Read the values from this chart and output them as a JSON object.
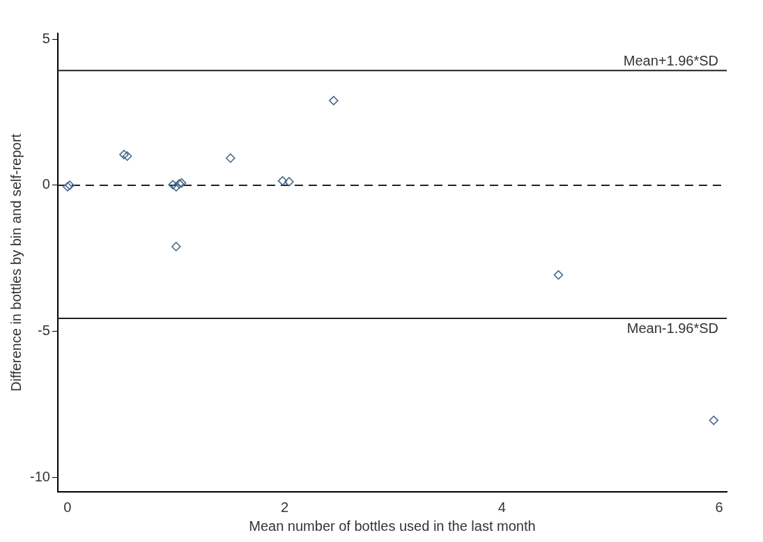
{
  "chart_data": {
    "type": "scatter",
    "xlabel": "Mean number of bottles used in the last month",
    "ylabel": "Difference in bottles by bin and self-report",
    "x": [
      0.0,
      0.02,
      0.52,
      0.55,
      0.97,
      1.0,
      1.03,
      1.05,
      1.0,
      1.5,
      1.98,
      2.04,
      2.45,
      4.52,
      5.95
    ],
    "series": [
      {
        "color": "#4a6a8c",
        "values": [
          -0.05,
          0.0,
          1.05,
          1.0,
          0.02,
          -0.05,
          0.05,
          0.08,
          -2.1,
          0.93,
          0.15,
          0.12,
          2.9,
          -3.07,
          -8.05
        ]
      }
    ],
    "marker": "diamond",
    "grid": false,
    "legend": false,
    "xlim": [
      -0.09,
      6.07
    ],
    "xticks": [
      0,
      2,
      4,
      6
    ],
    "ylim": [
      -10.5,
      5.2
    ],
    "yticks": [
      -10,
      -5,
      0,
      5
    ],
    "ref_lines": [
      {
        "axis": "y",
        "value": 3.93,
        "label": "Mean+1.96*SD",
        "line_style": "solid",
        "color": "#222222"
      },
      {
        "axis": "y",
        "value": 0,
        "line_style": "dashed",
        "color": "#222222"
      },
      {
        "axis": "y",
        "value": -4.56,
        "label": "Mean-1.96*SD",
        "line_style": "solid",
        "color": "#222222"
      }
    ]
  }
}
